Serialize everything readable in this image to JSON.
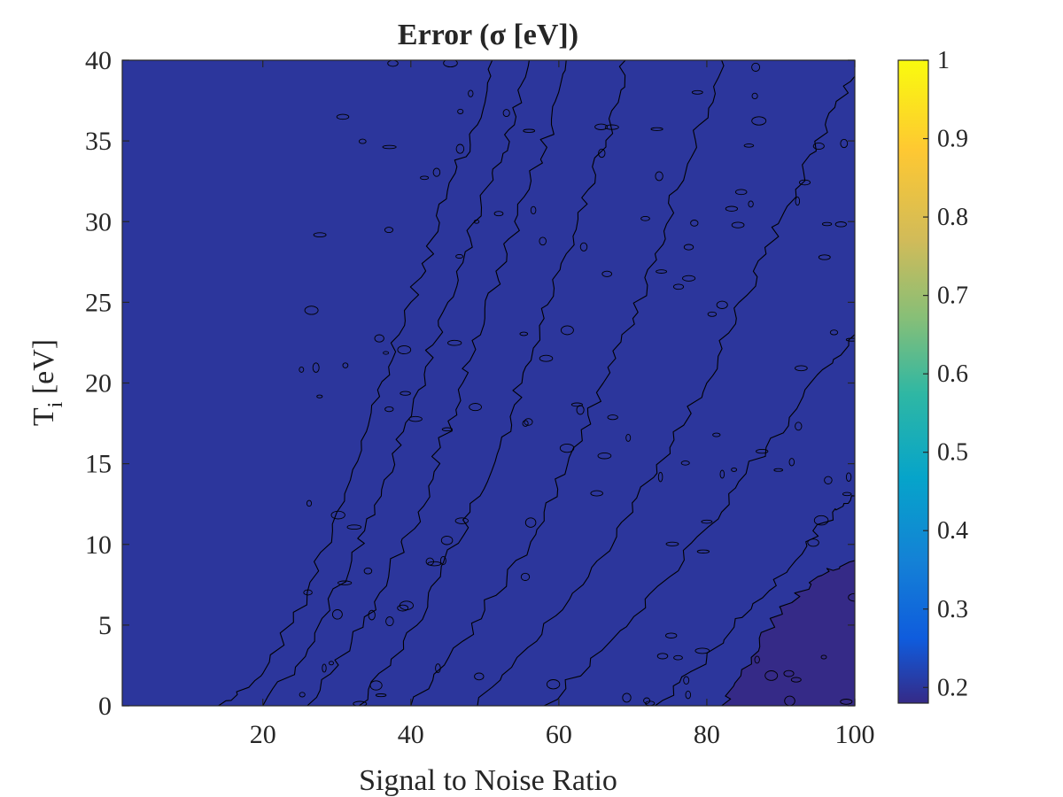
{
  "chart_data": {
    "type": "heatmap",
    "title": "Error (σ [eV])",
    "xlabel": "Signal to Noise Ratio",
    "ylabel": "T",
    "ylabel_sub": "i",
    "ylabel_rest": " [eV]",
    "xlim": [
      1,
      100
    ],
    "ylim": [
      0,
      40
    ],
    "xticks": [
      20,
      40,
      60,
      80,
      100
    ],
    "yticks": [
      0,
      5,
      10,
      15,
      20,
      25,
      30,
      35,
      40
    ],
    "colorbar": {
      "colormap": "parula",
      "clim": [
        0.18,
        1.0
      ],
      "ticks": [
        0.2,
        0.3,
        0.4,
        0.5,
        0.6,
        0.7,
        0.8,
        0.9,
        1
      ]
    },
    "contour_levels": [
      0.25,
      0.33,
      0.42,
      0.5,
      0.6,
      0.7,
      0.8,
      0.9
    ],
    "contour_boundaries": [
      {
        "level": 1.0,
        "points": [
          [
            14,
            0
          ],
          [
            20,
            2
          ],
          [
            26,
            7
          ],
          [
            30,
            12
          ],
          [
            34,
            17
          ],
          [
            37,
            21
          ],
          [
            40,
            25
          ],
          [
            43,
            29
          ],
          [
            46,
            33
          ],
          [
            49,
            36
          ],
          [
            51,
            40
          ]
        ]
      },
      {
        "level": 0.9,
        "points": [
          [
            20,
            0
          ],
          [
            27,
            4
          ],
          [
            32,
            9
          ],
          [
            36,
            13
          ],
          [
            39,
            17
          ],
          [
            42,
            21
          ],
          [
            45,
            25
          ],
          [
            48,
            29
          ],
          [
            51,
            33
          ],
          [
            54,
            36
          ],
          [
            56,
            40
          ]
        ]
      },
      {
        "level": 0.8,
        "points": [
          [
            26,
            0
          ],
          [
            32,
            4
          ],
          [
            37,
            8
          ],
          [
            41,
            12
          ],
          [
            44,
            16
          ],
          [
            47,
            20
          ],
          [
            50,
            24
          ],
          [
            53,
            28
          ],
          [
            56,
            32
          ],
          [
            59,
            36
          ],
          [
            61,
            40
          ]
        ]
      },
      {
        "level": 0.7,
        "points": [
          [
            33,
            0
          ],
          [
            39,
            4
          ],
          [
            44,
            8
          ],
          [
            48,
            12
          ],
          [
            52,
            16
          ],
          [
            55,
            20
          ],
          [
            58,
            24
          ],
          [
            61,
            28
          ],
          [
            64,
            32
          ],
          [
            67,
            36
          ],
          [
            69,
            40
          ]
        ]
      },
      {
        "level": 0.6,
        "points": [
          [
            40,
            0
          ],
          [
            47,
            4
          ],
          [
            53,
            8
          ],
          [
            58,
            12
          ],
          [
            62,
            16
          ],
          [
            66,
            20
          ],
          [
            70,
            24
          ],
          [
            73,
            28
          ],
          [
            76,
            32
          ],
          [
            79,
            36
          ],
          [
            82,
            40
          ]
        ]
      },
      {
        "level": 0.5,
        "points": [
          [
            49,
            0
          ],
          [
            57,
            4
          ],
          [
            64,
            8
          ],
          [
            70,
            12
          ],
          [
            75,
            16
          ],
          [
            80,
            20
          ],
          [
            84,
            24
          ],
          [
            88,
            28
          ],
          [
            92,
            32
          ],
          [
            96,
            36
          ],
          [
            100,
            39
          ]
        ]
      },
      {
        "level": 0.4,
        "points": [
          [
            58,
            0
          ],
          [
            67,
            4
          ],
          [
            75,
            8
          ],
          [
            82,
            12
          ],
          [
            88,
            16
          ],
          [
            94,
            20
          ],
          [
            100,
            23
          ]
        ]
      },
      {
        "level": 0.3,
        "points": [
          [
            73,
            0
          ],
          [
            80,
            3
          ],
          [
            86,
            6
          ],
          [
            92,
            9
          ],
          [
            97,
            12
          ],
          [
            100,
            13
          ]
        ]
      },
      {
        "level": 0.2,
        "points": [
          [
            82,
            0
          ],
          [
            86,
            3
          ],
          [
            90,
            6
          ],
          [
            95,
            8
          ],
          [
            100,
            9
          ]
        ]
      }
    ]
  }
}
